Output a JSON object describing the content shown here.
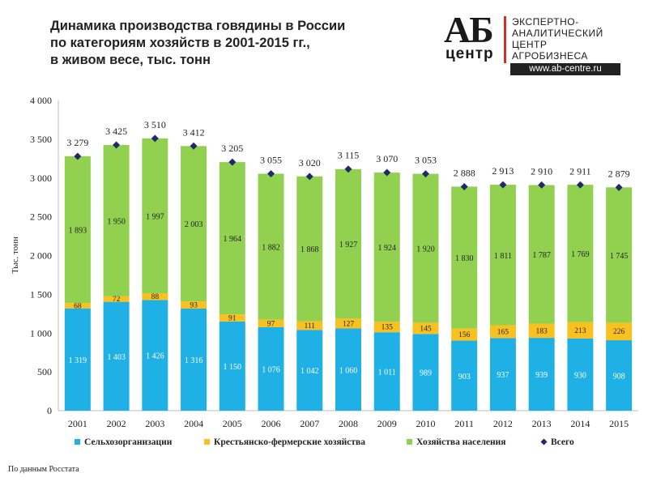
{
  "header": {
    "title_lines": [
      "Динамика производства говядины в России",
      "по категориям хозяйств  в 2001-2015 гг.,",
      "в живом весе, тыс. тонн"
    ]
  },
  "logo": {
    "mark_top": "АБ",
    "mark_bottom": "центр",
    "lines": [
      "ЭКСПЕРТНО-",
      "АНАЛИТИЧЕСКИЙ",
      "ЦЕНТР",
      "АГРОБИЗНЕСА"
    ],
    "url": "www.ab-centre.ru",
    "accent_color": "#d0312d"
  },
  "chart_data": {
    "type": "bar",
    "stacked": true,
    "categories": [
      "2001",
      "2002",
      "2003",
      "2004",
      "2005",
      "2006",
      "2007",
      "2008",
      "2009",
      "2010",
      "2011",
      "2012",
      "2013",
      "2014",
      "2015"
    ],
    "series": [
      {
        "name": "Сельхозорганизации",
        "color": "#1fb0e6",
        "values": [
          1319,
          1403,
          1426,
          1316,
          1150,
          1076,
          1042,
          1060,
          1011,
          989,
          903,
          937,
          939,
          930,
          908
        ],
        "labels": [
          "1 319",
          "1 403",
          "1 426",
          "1 316",
          "1 150",
          "1 076",
          "1 042",
          "1 060",
          "1 011",
          "989",
          "903",
          "937",
          "939",
          "930",
          "908"
        ]
      },
      {
        "name": "Крестьянско-фермерские хозяйства",
        "color": "#f9c120",
        "values": [
          68,
          72,
          88,
          93,
          91,
          97,
          111,
          127,
          135,
          145,
          156,
          165,
          183,
          213,
          226
        ],
        "labels": [
          "68",
          "72",
          "88",
          "93",
          "91",
          "97",
          "111",
          "127",
          "135",
          "145",
          "156",
          "165",
          "183",
          "213",
          "226"
        ]
      },
      {
        "name": "Хозяйства населения",
        "color": "#92d050",
        "values": [
          1893,
          1950,
          1997,
          2003,
          1964,
          1882,
          1868,
          1927,
          1924,
          1920,
          1830,
          1811,
          1787,
          1769,
          1745
        ],
        "labels": [
          "1 893",
          "1 950",
          "1 997",
          "2 003",
          "1 964",
          "1 882",
          "1 868",
          "1 927",
          "1 924",
          "1 920",
          "1 830",
          "1 811",
          "1 787",
          "1 769",
          "1 745"
        ]
      },
      {
        "name": "Всего",
        "type": "marker",
        "color": "#1f2a6b",
        "values": [
          3279,
          3425,
          3510,
          3412,
          3205,
          3055,
          3020,
          3115,
          3070,
          3053,
          2888,
          2913,
          2910,
          2911,
          2879
        ],
        "labels": [
          "3 279",
          "3 425",
          "3 510",
          "3 412",
          "3 205",
          "3 055",
          "3 020",
          "3 115",
          "3 070",
          "3 053",
          "2 888",
          "2 913",
          "2 910",
          "2 911",
          "2 879"
        ]
      }
    ],
    "ylabel": "Тыс. тонн",
    "ylim": [
      0,
      4000
    ],
    "yticks": [
      0,
      500,
      1000,
      1500,
      2000,
      2500,
      3000,
      3500,
      4000
    ],
    "ytick_labels": [
      "0",
      "500",
      "1 000",
      "1 500",
      "2 000",
      "2 500",
      "3 000",
      "3 500",
      "4 000"
    ],
    "grid": false,
    "legend_position": "bottom"
  },
  "footer": {
    "source": "По данным Росстата"
  }
}
